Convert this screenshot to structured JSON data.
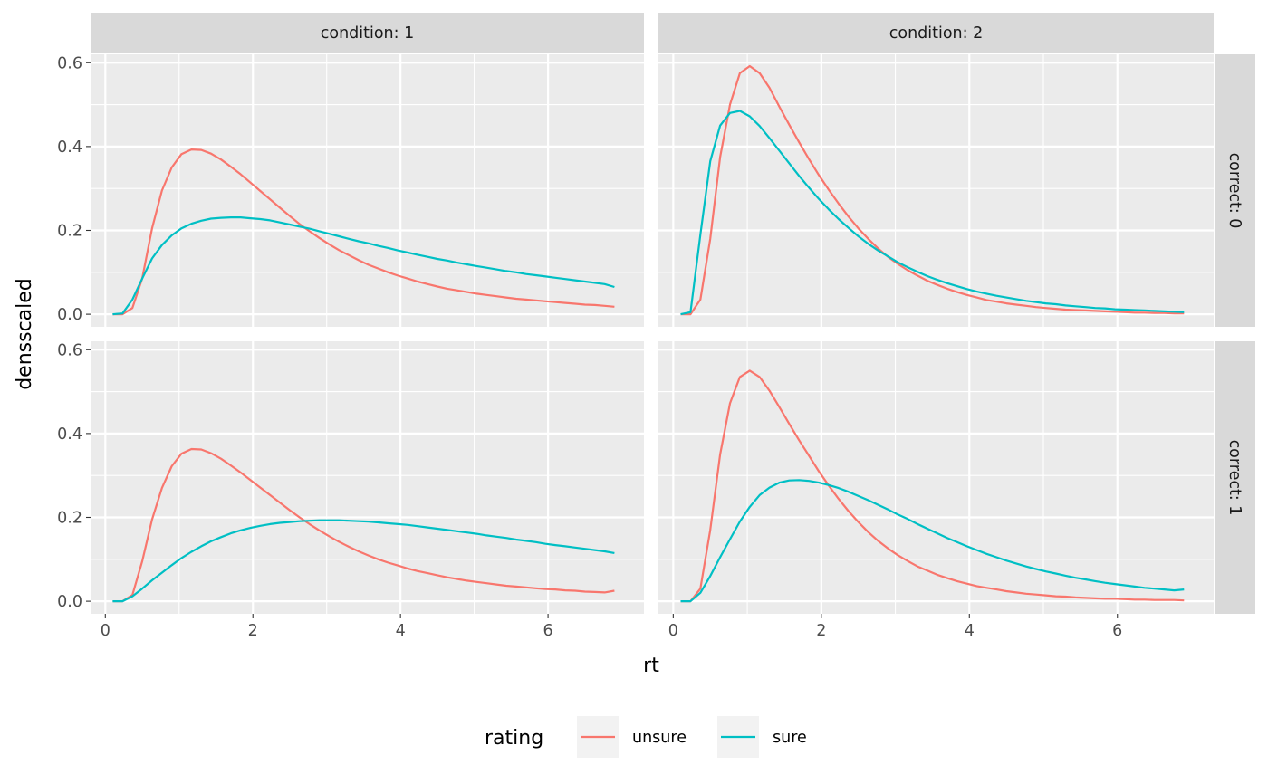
{
  "chart_data": {
    "type": "line",
    "xlabel": "rt",
    "ylabel": "densscaled",
    "xlim": [
      -0.2,
      7.3
    ],
    "ylim": [
      -0.03,
      0.62
    ],
    "x_ticks": [
      0,
      2,
      4,
      6
    ],
    "x_tick_labels": [
      "0",
      "2",
      "4",
      "6"
    ],
    "y_ticks": [
      0.0,
      0.2,
      0.4,
      0.6
    ],
    "y_tick_labels": [
      "0.0",
      "0.2",
      "0.4",
      "0.6"
    ],
    "grid": true,
    "legend": {
      "title": "rating",
      "position": "bottom",
      "entries": [
        {
          "name": "unsure",
          "color": "#F8766D"
        },
        {
          "name": "sure",
          "color": "#00BFC4"
        }
      ]
    },
    "facets": {
      "columns": [
        "condition: 1",
        "condition: 2"
      ],
      "rows": [
        "correct: 0",
        "correct: 1"
      ]
    },
    "x": [
      0.1,
      0.233,
      0.367,
      0.5,
      0.633,
      0.767,
      0.9,
      1.033,
      1.167,
      1.3,
      1.433,
      1.567,
      1.7,
      1.833,
      1.967,
      2.1,
      2.233,
      2.367,
      2.5,
      2.633,
      2.767,
      2.9,
      3.033,
      3.167,
      3.3,
      3.433,
      3.567,
      3.7,
      3.833,
      3.967,
      4.1,
      4.233,
      4.367,
      4.5,
      4.633,
      4.767,
      4.9,
      5.033,
      5.167,
      5.3,
      5.433,
      5.567,
      5.7,
      5.833,
      5.967,
      6.1,
      6.233,
      6.367,
      6.5,
      6.633,
      6.767,
      6.9
    ],
    "panels": [
      {
        "row": 0,
        "col": 0,
        "series": [
          {
            "name": "unsure",
            "values": [
              0.0,
              0.0,
              0.015,
              0.085,
              0.205,
              0.295,
              0.35,
              0.382,
              0.393,
              0.392,
              0.383,
              0.369,
              0.352,
              0.334,
              0.314,
              0.294,
              0.274,
              0.254,
              0.234,
              0.215,
              0.198,
              0.182,
              0.167,
              0.153,
              0.141,
              0.129,
              0.118,
              0.109,
              0.1,
              0.092,
              0.085,
              0.078,
              0.072,
              0.066,
              0.061,
              0.057,
              0.053,
              0.049,
              0.046,
              0.043,
              0.04,
              0.037,
              0.035,
              0.033,
              0.031,
              0.029,
              0.027,
              0.025,
              0.023,
              0.022,
              0.02,
              0.018
            ]
          },
          {
            "name": "sure",
            "values": [
              0.0,
              0.002,
              0.035,
              0.085,
              0.133,
              0.165,
              0.188,
              0.205,
              0.216,
              0.223,
              0.228,
              0.23,
              0.231,
              0.231,
              0.229,
              0.227,
              0.224,
              0.219,
              0.214,
              0.209,
              0.204,
              0.198,
              0.192,
              0.186,
              0.18,
              0.174,
              0.169,
              0.163,
              0.158,
              0.152,
              0.147,
              0.142,
              0.137,
              0.132,
              0.128,
              0.123,
              0.119,
              0.115,
              0.111,
              0.107,
              0.103,
              0.1,
              0.096,
              0.093,
              0.09,
              0.087,
              0.084,
              0.081,
              0.078,
              0.075,
              0.072,
              0.065
            ]
          }
        ]
      },
      {
        "row": 0,
        "col": 1,
        "series": [
          {
            "name": "unsure",
            "values": [
              0.0,
              0.0,
              0.035,
              0.18,
              0.375,
              0.5,
              0.575,
              0.592,
              0.575,
              0.54,
              0.495,
              0.452,
              0.41,
              0.37,
              0.332,
              0.297,
              0.264,
              0.233,
              0.205,
              0.18,
              0.157,
              0.137,
              0.12,
              0.105,
              0.092,
              0.08,
              0.07,
              0.061,
              0.053,
              0.046,
              0.04,
              0.034,
              0.03,
              0.026,
              0.023,
              0.02,
              0.017,
              0.015,
              0.013,
              0.011,
              0.01,
              0.009,
              0.008,
              0.007,
              0.006,
              0.005,
              0.004,
              0.004,
              0.003,
              0.003,
              0.002,
              0.002
            ]
          },
          {
            "name": "sure",
            "values": [
              0.0,
              0.005,
              0.19,
              0.365,
              0.45,
              0.48,
              0.485,
              0.472,
              0.449,
              0.42,
              0.39,
              0.36,
              0.33,
              0.302,
              0.275,
              0.25,
              0.227,
              0.206,
              0.186,
              0.168,
              0.152,
              0.138,
              0.124,
              0.112,
              0.101,
              0.091,
              0.082,
              0.074,
              0.067,
              0.06,
              0.054,
              0.049,
              0.044,
              0.04,
              0.036,
              0.032,
              0.029,
              0.026,
              0.024,
              0.021,
              0.019,
              0.017,
              0.015,
              0.014,
              0.012,
              0.011,
              0.01,
              0.009,
              0.008,
              0.007,
              0.006,
              0.005
            ]
          }
        ]
      },
      {
        "row": 1,
        "col": 0,
        "series": [
          {
            "name": "unsure",
            "values": [
              0.0,
              0.0,
              0.015,
              0.095,
              0.195,
              0.27,
              0.322,
              0.352,
              0.363,
              0.362,
              0.353,
              0.34,
              0.324,
              0.307,
              0.289,
              0.271,
              0.253,
              0.235,
              0.217,
              0.2,
              0.184,
              0.169,
              0.155,
              0.142,
              0.13,
              0.119,
              0.109,
              0.1,
              0.092,
              0.085,
              0.078,
              0.072,
              0.067,
              0.062,
              0.057,
              0.053,
              0.049,
              0.046,
              0.043,
              0.04,
              0.037,
              0.035,
              0.033,
              0.031,
              0.029,
              0.028,
              0.026,
              0.025,
              0.023,
              0.022,
              0.021,
              0.025
            ]
          },
          {
            "name": "sure",
            "values": [
              0.0,
              0.0,
              0.012,
              0.03,
              0.05,
              0.068,
              0.086,
              0.103,
              0.118,
              0.131,
              0.143,
              0.153,
              0.162,
              0.169,
              0.175,
              0.18,
              0.184,
              0.187,
              0.189,
              0.191,
              0.192,
              0.193,
              0.193,
              0.193,
              0.192,
              0.191,
              0.19,
              0.188,
              0.186,
              0.184,
              0.182,
              0.179,
              0.176,
              0.173,
              0.17,
              0.167,
              0.164,
              0.161,
              0.157,
              0.154,
              0.151,
              0.147,
              0.144,
              0.141,
              0.137,
              0.134,
              0.131,
              0.128,
              0.125,
              0.122,
              0.119,
              0.115
            ]
          }
        ]
      },
      {
        "row": 1,
        "col": 1,
        "series": [
          {
            "name": "unsure",
            "values": [
              0.0,
              0.0,
              0.03,
              0.17,
              0.35,
              0.472,
              0.535,
              0.55,
              0.535,
              0.502,
              0.463,
              0.423,
              0.384,
              0.347,
              0.31,
              0.276,
              0.244,
              0.215,
              0.189,
              0.165,
              0.144,
              0.126,
              0.11,
              0.096,
              0.083,
              0.073,
              0.063,
              0.055,
              0.048,
              0.042,
              0.036,
              0.032,
              0.028,
              0.024,
              0.021,
              0.018,
              0.016,
              0.014,
              0.012,
              0.011,
              0.009,
              0.008,
              0.007,
              0.006,
              0.006,
              0.005,
              0.004,
              0.004,
              0.003,
              0.003,
              0.003,
              0.002
            ]
          },
          {
            "name": "sure",
            "values": [
              0.0,
              0.0,
              0.02,
              0.06,
              0.105,
              0.148,
              0.19,
              0.225,
              0.253,
              0.271,
              0.283,
              0.288,
              0.289,
              0.287,
              0.283,
              0.277,
              0.27,
              0.261,
              0.251,
              0.241,
              0.23,
              0.219,
              0.207,
              0.196,
              0.184,
              0.173,
              0.162,
              0.151,
              0.141,
              0.131,
              0.122,
              0.113,
              0.105,
              0.097,
              0.09,
              0.083,
              0.077,
              0.071,
              0.066,
              0.061,
              0.056,
              0.052,
              0.048,
              0.044,
              0.041,
              0.038,
              0.035,
              0.032,
              0.03,
              0.028,
              0.026,
              0.028
            ]
          }
        ]
      }
    ]
  }
}
